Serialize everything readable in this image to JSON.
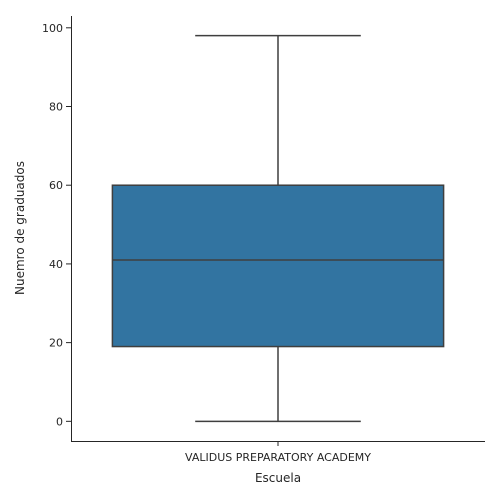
{
  "chart_data": {
    "type": "box",
    "title": "",
    "xlabel": "Escuela",
    "ylabel": "Nuemro de graduados",
    "categories": [
      "VALIDUS PREPARATORY ACADEMY"
    ],
    "boxes": [
      {
        "category": "VALIDUS PREPARATORY ACADEMY",
        "whisker_low": 0,
        "q1": 19,
        "median": 41,
        "q3": 60,
        "whisker_high": 98
      }
    ],
    "ylim": [
      -5,
      103
    ],
    "yticks": [
      0,
      20,
      40,
      60,
      80,
      100
    ],
    "grid": false,
    "legend": "none",
    "colors": {
      "box_fill": "#3274a1",
      "line": "#3f3f3f",
      "axis": "#262626"
    }
  }
}
